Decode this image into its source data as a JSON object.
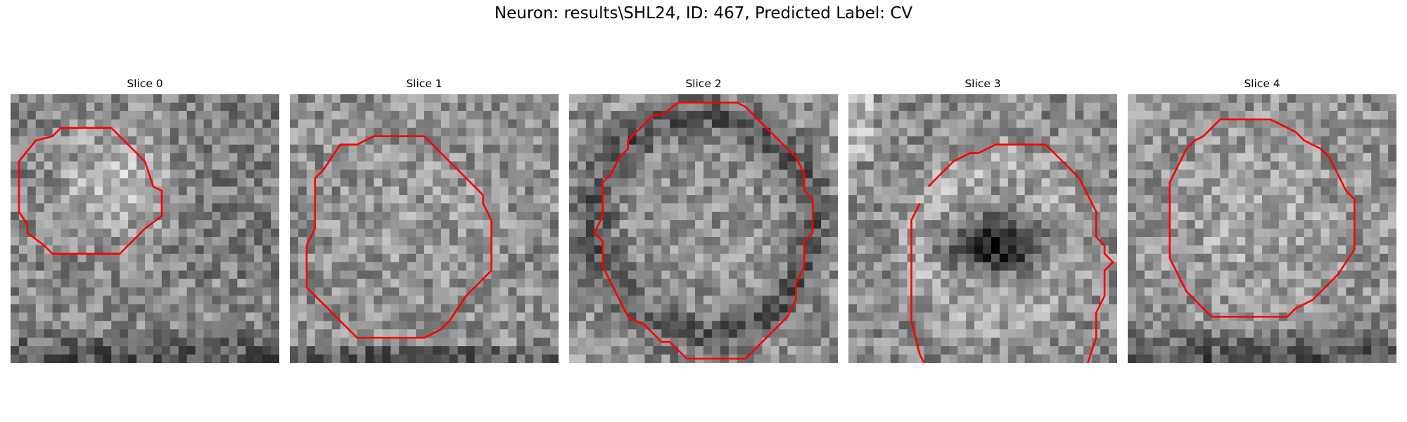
{
  "figure": {
    "title": "Neuron: results\\SHL24, ID: 467, Predicted Label: CV"
  },
  "slices": [
    {
      "title": "Slice 0",
      "contour_color": "#ff0000"
    },
    {
      "title": "Slice 1",
      "contour_color": "#ff0000"
    },
    {
      "title": "Slice 2",
      "contour_color": "#ff0000"
    },
    {
      "title": "Slice 3",
      "contour_color": "#ff0000"
    },
    {
      "title": "Slice 4",
      "contour_color": "#ff0000"
    }
  ],
  "colormap": "gray"
}
